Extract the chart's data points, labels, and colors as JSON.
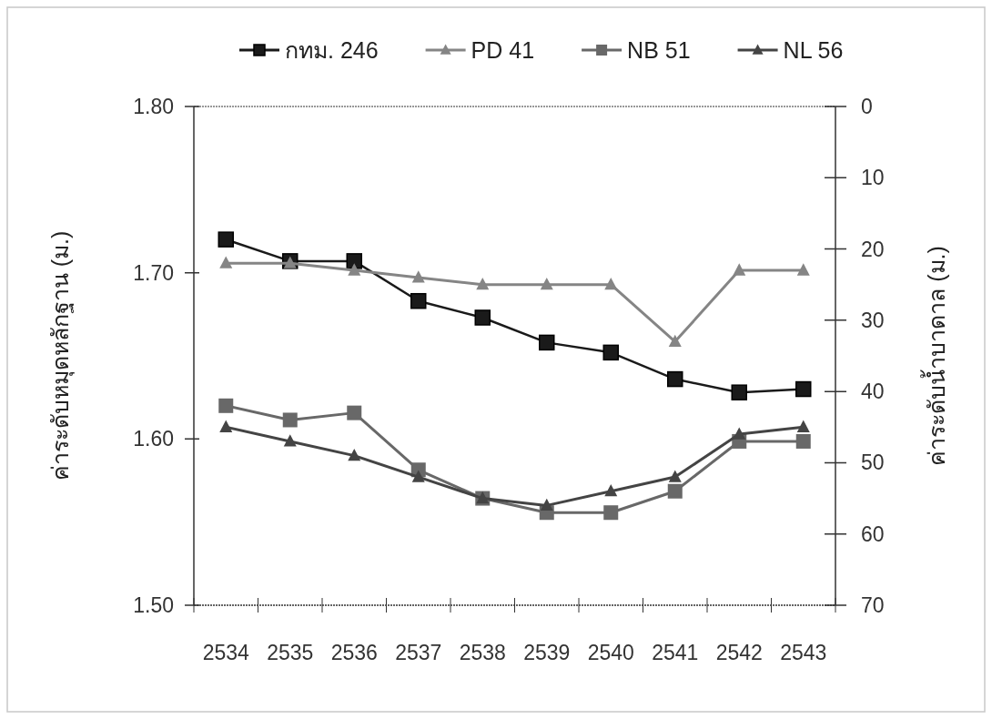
{
  "chart_data": {
    "type": "line",
    "categories": [
      "2534",
      "2535",
      "2536",
      "2537",
      "2538",
      "2539",
      "2540",
      "2541",
      "2542",
      "2543"
    ],
    "series": [
      {
        "name": "กทม. 246",
        "color": "#1a1a1a",
        "marker": "square",
        "values": [
          1.72,
          1.707,
          1.707,
          1.683,
          1.673,
          1.658,
          1.652,
          1.636,
          1.628,
          1.63
        ]
      },
      {
        "name": "PD 41",
        "color": "#858585",
        "marker": "triangle",
        "axis": "y2",
        "values": [
          22,
          22,
          23,
          24,
          25,
          25,
          25,
          33,
          23,
          23
        ]
      },
      {
        "name": "NB 51",
        "color": "#686868",
        "marker": "square",
        "axis": "y2",
        "values": [
          42,
          44,
          43,
          51,
          55,
          57,
          57,
          54,
          47,
          47
        ]
      },
      {
        "name": "NL 56",
        "color": "#444444",
        "marker": "triangle",
        "axis": "y2",
        "values": [
          45,
          47,
          49,
          52,
          55,
          56,
          54,
          52,
          46,
          45
        ]
      }
    ],
    "ylim": [
      1.5,
      1.8
    ],
    "yticks": [
      {
        "value": 1.5,
        "label": "1.50"
      },
      {
        "value": 1.6,
        "label": "1.60"
      },
      {
        "value": 1.7,
        "label": "1.70"
      },
      {
        "value": 1.8,
        "label": "1.80"
      }
    ],
    "y2lim": [
      70,
      0
    ],
    "y2ticks": [
      0,
      10,
      20,
      30,
      40,
      50,
      60,
      70
    ],
    "ylabel": "ค่าระดับหมุดหลักฐาน  (ม.)",
    "y2label": "ค่าระดับน้ำบาดาล  (ม.)",
    "legend": "top",
    "grid": false
  }
}
